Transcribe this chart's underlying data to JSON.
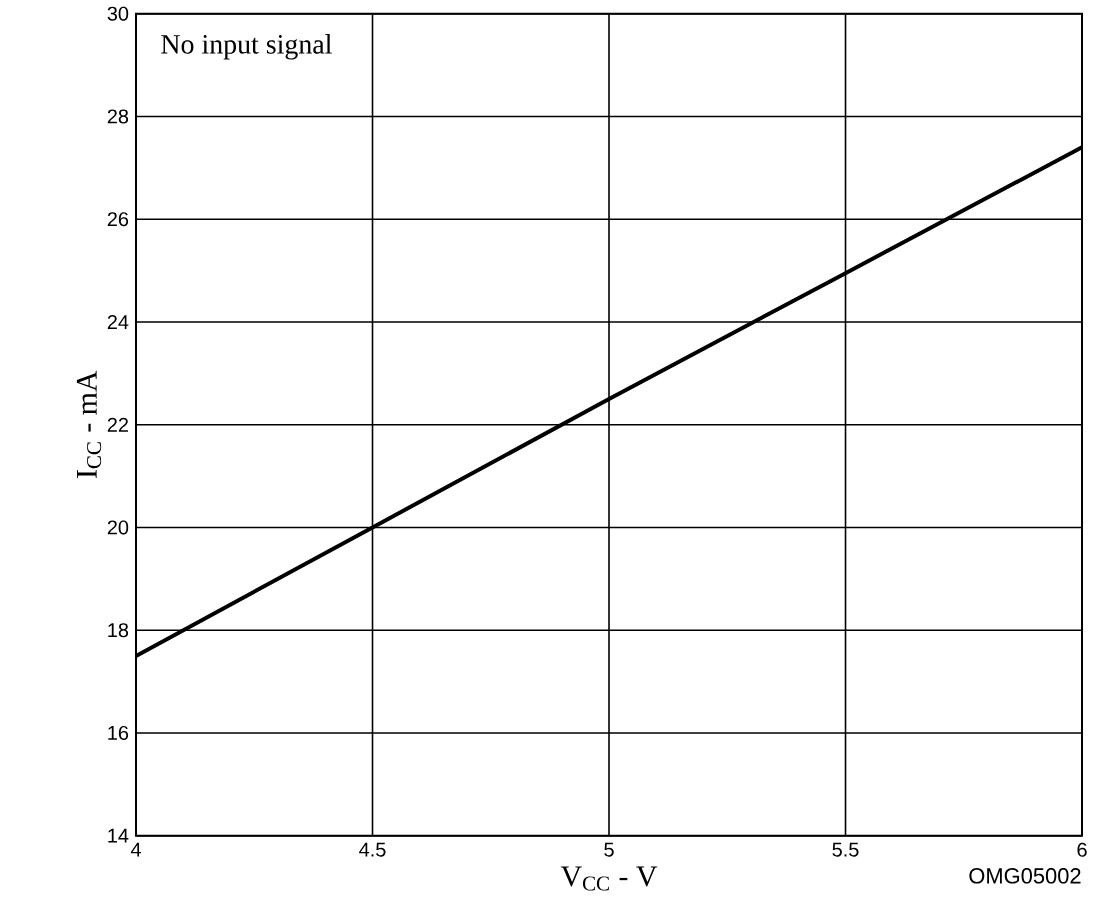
{
  "chart_data": {
    "type": "line",
    "xlabel": "V$_{CC}$ -  V",
    "ylabel": "I$_{CC}$ - mA",
    "x": [
      4,
      4.5,
      5,
      5.5,
      6
    ],
    "series": [
      {
        "color": "#000000",
        "values": [
          17.5,
          20,
          22.5,
          24.95,
          27.4
        ]
      }
    ],
    "xlim": [
      4,
      6
    ],
    "ylim": [
      14,
      30
    ],
    "xticks": [
      4,
      4.5,
      5,
      5.5,
      6
    ],
    "yticks": [
      14,
      16,
      18,
      20,
      22,
      24,
      26,
      28,
      30
    ],
    "grid": true,
    "marker": "none",
    "line_style": "solid",
    "annotations": [
      "No input signal",
      "OMG05002"
    ]
  }
}
